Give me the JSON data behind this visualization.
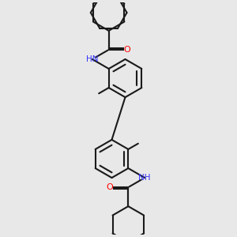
{
  "background_color": "#e8e8e8",
  "line_color": "#1a1a1a",
  "nitrogen_color": "#3333ff",
  "oxygen_color": "#ff0000",
  "bond_lw": 1.5,
  "figsize": [
    3.0,
    3.0
  ],
  "dpi": 100,
  "xlim": [
    -2.5,
    2.5
  ],
  "ylim": [
    -5.2,
    5.2
  ]
}
